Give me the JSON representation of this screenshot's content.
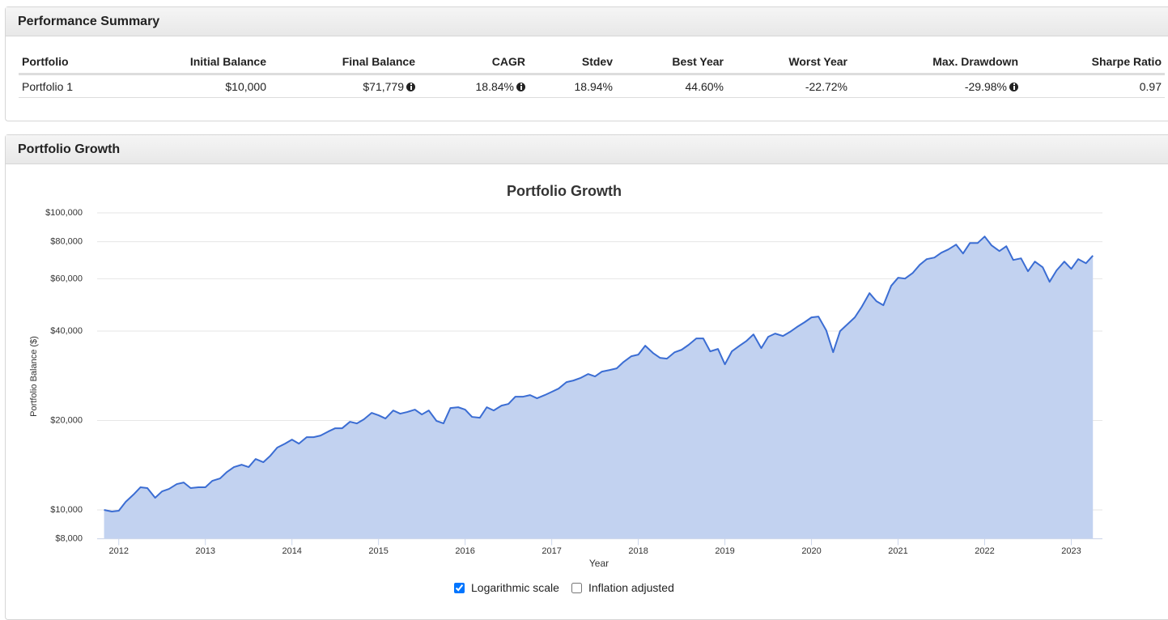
{
  "summary": {
    "title": "Performance Summary",
    "columns": [
      "Portfolio",
      "Initial Balance",
      "Final Balance",
      "CAGR",
      "Stdev",
      "Best Year",
      "Worst Year",
      "Max. Drawdown",
      "Sharpe Ratio"
    ],
    "rows": [
      [
        "Portfolio 1",
        "$10,000",
        "$71,779",
        "18.84%",
        "18.94%",
        "44.60%",
        "-22.72%",
        "-29.98%",
        "0.97"
      ]
    ]
  },
  "growth": {
    "title": "Portfolio Growth"
  },
  "chart_data": {
    "type": "area",
    "title": "Portfolio Growth",
    "x_label": "Year",
    "y_label": "Portfolio Balance ($)",
    "log_scale": true,
    "grid": true,
    "color": "#3b6dd3",
    "fill": "#c2d2f0",
    "x": [
      2011.83,
      2011.92,
      2012,
      2012.08,
      2012.17,
      2012.25,
      2012.33,
      2012.42,
      2012.5,
      2012.58,
      2012.67,
      2012.75,
      2012.83,
      2012.92,
      2013,
      2013.08,
      2013.17,
      2013.25,
      2013.33,
      2013.42,
      2013.5,
      2013.58,
      2013.67,
      2013.75,
      2013.83,
      2013.92,
      2014,
      2014.08,
      2014.17,
      2014.25,
      2014.33,
      2014.42,
      2014.5,
      2014.58,
      2014.67,
      2014.75,
      2014.83,
      2014.92,
      2015,
      2015.08,
      2015.17,
      2015.25,
      2015.33,
      2015.42,
      2015.5,
      2015.58,
      2015.67,
      2015.75,
      2015.83,
      2015.92,
      2016,
      2016.08,
      2016.17,
      2016.25,
      2016.33,
      2016.42,
      2016.5,
      2016.58,
      2016.67,
      2016.75,
      2016.83,
      2016.92,
      2017,
      2017.08,
      2017.17,
      2017.25,
      2017.33,
      2017.42,
      2017.5,
      2017.58,
      2017.67,
      2017.75,
      2017.83,
      2017.92,
      2018,
      2018.08,
      2018.17,
      2018.25,
      2018.33,
      2018.42,
      2018.5,
      2018.58,
      2018.67,
      2018.75,
      2018.83,
      2018.92,
      2019,
      2019.08,
      2019.17,
      2019.25,
      2019.33,
      2019.42,
      2019.5,
      2019.58,
      2019.67,
      2019.75,
      2019.83,
      2019.92,
      2020,
      2020.08,
      2020.17,
      2020.25,
      2020.33,
      2020.42,
      2020.5,
      2020.58,
      2020.67,
      2020.75,
      2020.83,
      2020.92,
      2021,
      2021.08,
      2021.17,
      2021.25,
      2021.33,
      2021.42,
      2021.5,
      2021.58,
      2021.67,
      2021.75,
      2021.83,
      2021.92,
      2022,
      2022.08,
      2022.17,
      2022.25,
      2022.33,
      2022.42,
      2022.5,
      2022.58,
      2022.67,
      2022.75,
      2022.83,
      2022.92,
      2023,
      2023.08,
      2023.17,
      2023.25
    ],
    "values": [
      10000,
      9875,
      9937,
      10650,
      11265,
      11920,
      11845,
      10990,
      11550,
      11770,
      12220,
      12370,
      11850,
      11920,
      11920,
      12530,
      12770,
      13430,
      13940,
      14200,
      13940,
      14840,
      14480,
      15220,
      16210,
      16720,
      17250,
      16720,
      17580,
      17580,
      17800,
      18370,
      18840,
      18840,
      19810,
      19560,
      20180,
      21220,
      20830,
      20310,
      21620,
      21090,
      21360,
      21760,
      20960,
      21620,
      19930,
      19560,
      22030,
      22170,
      21760,
      20570,
      20440,
      22170,
      21620,
      22450,
      22740,
      24060,
      24060,
      24360,
      23760,
      24360,
      24980,
      25620,
      26930,
      27270,
      27790,
      28680,
      28150,
      29220,
      29590,
      29960,
      31500,
      32920,
      33330,
      35720,
      33750,
      32510,
      32310,
      33960,
      34610,
      35940,
      37790,
      37790,
      34180,
      34830,
      30920,
      34180,
      35720,
      37080,
      38990,
      35050,
      38270,
      39240,
      38510,
      39730,
      41250,
      42840,
      44480,
      44760,
      40240,
      33960,
      39980,
      42300,
      44480,
      48260,
      53680,
      50420,
      48870,
      56790,
      60470,
      60090,
      62800,
      66860,
      69860,
      70740,
      73450,
      75320,
      78200,
      72990,
      79190,
      79190,
      83270,
      77710,
      74380,
      77220,
      69420,
      70300,
      63590,
      68540,
      65610,
      58610,
      64000,
      68540,
      64790,
      69860,
      67690,
      71779
    ],
    "xlim": [
      2011.75,
      2023.36
    ],
    "xticks": [
      2012,
      2013,
      2014,
      2015,
      2016,
      2017,
      2018,
      2019,
      2020,
      2021,
      2022,
      2023
    ],
    "ylim": [
      8000,
      100000
    ],
    "yticks": [
      {
        "value": 8000,
        "label": "$8,000"
      },
      {
        "value": 10000,
        "label": "$10,000"
      },
      {
        "value": 20000,
        "label": "$20,000"
      },
      {
        "value": 40000,
        "label": "$40,000"
      },
      {
        "value": 60000,
        "label": "$60,000"
      },
      {
        "value": 80000,
        "label": "$80,000"
      },
      {
        "value": 100000,
        "label": "$100,000"
      }
    ]
  },
  "controls": [
    {
      "label": "Logarithmic scale",
      "checked": true
    },
    {
      "label": "Inflation adjusted",
      "checked": false
    }
  ]
}
